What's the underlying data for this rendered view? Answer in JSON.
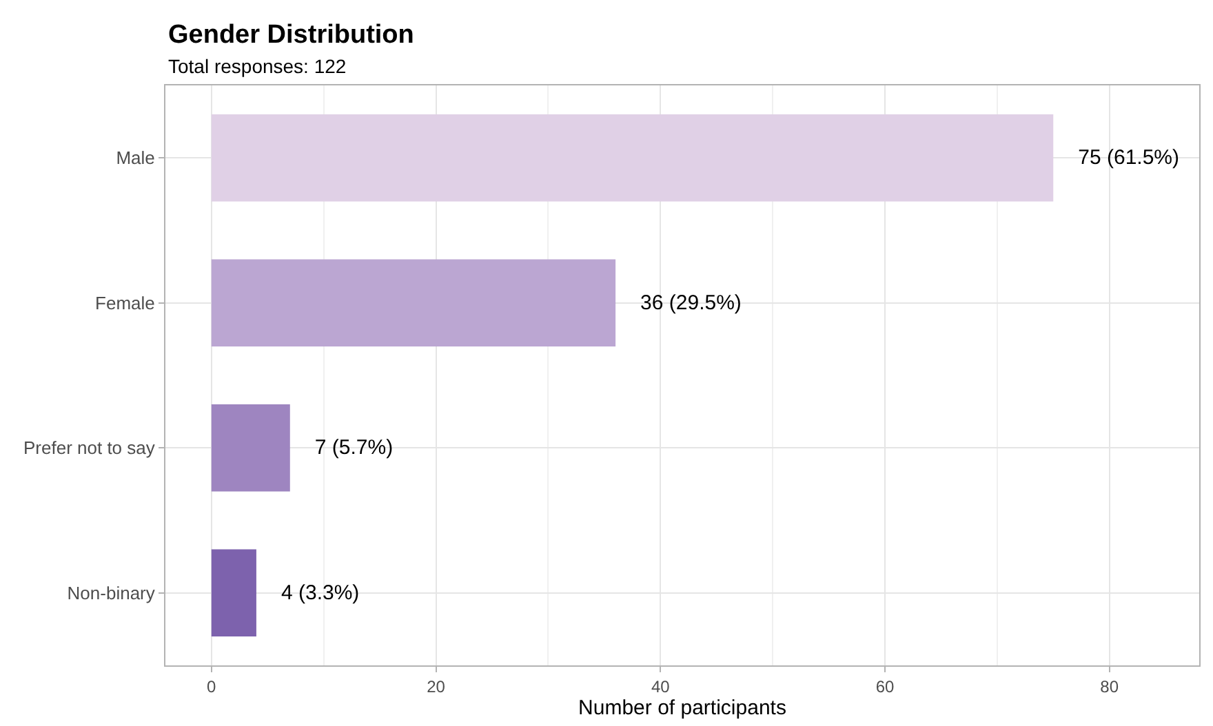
{
  "chart_data": {
    "type": "bar",
    "orientation": "horizontal",
    "title": "Gender Distribution",
    "subtitle": "Total responses: 122",
    "xlabel": "Number of participants",
    "categories": [
      "Male",
      "Female",
      "Prefer not to say",
      "Non-binary"
    ],
    "values": [
      75,
      36,
      7,
      4
    ],
    "colors": [
      "#e0d0e6",
      "#bba6d2",
      "#9e85c0",
      "#7d62ad"
    ],
    "value_labels": [
      "75 (61.5%)",
      "36 (29.5%)",
      "7 (5.7%)",
      "4 (3.3%)"
    ],
    "xlim": [
      -4.1,
      88
    ],
    "xticks": [
      0,
      20,
      40,
      60,
      80
    ],
    "grid": true
  }
}
